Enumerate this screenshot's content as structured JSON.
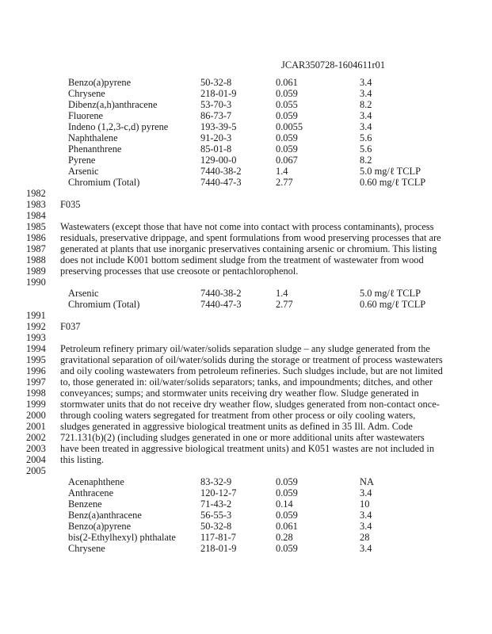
{
  "header": {
    "doc_id": "JCAR350728-1604611r01"
  },
  "table_1": [
    [
      "Benzo(a)pyrene",
      "50-32-8",
      "0.061",
      "3.4"
    ],
    [
      "Chrysene",
      "218-01-9",
      "0.059",
      "3.4"
    ],
    [
      "Dibenz(a,h)anthracene",
      "53-70-3",
      "0.055",
      "8.2"
    ],
    [
      "Fluorene",
      "86-73-7",
      "0.059",
      "3.4"
    ],
    [
      "Indeno (1,2,3-c,d) pyrene",
      "193-39-5",
      "0.0055",
      "3.4"
    ],
    [
      "Naphthalene",
      "91-20-3",
      "0.059",
      "5.6"
    ],
    [
      "Phenanthrene",
      "85-01-8",
      "0.059",
      "5.6"
    ],
    [
      "Pyrene",
      "129-00-0",
      "0.067",
      "8.2"
    ],
    [
      "Arsenic",
      "7440-38-2",
      "1.4",
      "5.0 mg/ℓ TCLP"
    ],
    [
      "Chromium (Total)",
      "7440-47-3",
      "2.77",
      "0.60 mg/ℓ TCLP"
    ]
  ],
  "line_numbers_a": [
    "1982",
    "1983",
    "1984",
    "1985",
    "1986",
    "1987",
    "1988",
    "1989",
    "1990"
  ],
  "f035": {
    "code": "F035",
    "lines": [
      "Wastewaters (except those that have not come into contact with process contaminants), process",
      "residuals, preservative drippage, and spent formulations from wood preserving processes that are",
      "generated at plants that use inorganic preservatives containing arsenic or chromium. This listing",
      "does not include K001 bottom sediment sludge from the treatment of wastewater from wood",
      "preserving processes that use creosote or pentachlorophenol."
    ]
  },
  "table_2": [
    [
      "Arsenic",
      "7440-38-2",
      "1.4",
      "5.0 mg/ℓ TCLP"
    ],
    [
      "Chromium (Total)",
      "7440-47-3",
      "2.77",
      "0.60 mg/ℓ TCLP"
    ]
  ],
  "line_numbers_b": [
    "1991",
    "1992",
    "1993",
    "1994",
    "1995",
    "1996",
    "1997",
    "1998",
    "1999",
    "2000",
    "2001",
    "2002",
    "2003",
    "2004",
    "2005"
  ],
  "f037": {
    "code": "F037",
    "lines": [
      "Petroleum refinery primary oil/water/solids separation sludge – any sludge generated from the",
      "gravitational separation of oil/water/solids during the storage or treatment of process wastewaters",
      "and oily cooling wastewaters from petroleum refineries. Such sludges include, but are not limited",
      "to, those generated in:  oil/water/solids separators; tanks, and impoundments; ditches, and other",
      "conveyances; sumps; and stormwater units receiving dry weather flow. Sludge generated in",
      "stormwater units that do not receive dry weather flow, sludges generated from non-contact once-",
      "through cooling waters segregated for treatment from other process or oily cooling waters,",
      "sludges generated in aggressive biological treatment units as defined in 35 Ill. Adm. Code",
      "721.131(b)(2) (including sludges generated in one or more additional units after wastewaters",
      "have been treated in aggressive biological treatment units) and K051 wastes are not included in",
      "this listing."
    ]
  },
  "table_3": [
    [
      "Acenaphthene",
      "83-32-9",
      "0.059",
      "NA"
    ],
    [
      "Anthracene",
      "120-12-7",
      "0.059",
      "3.4"
    ],
    [
      "Benzene",
      "71-43-2",
      "0.14",
      "10"
    ],
    [
      "Benz(a)anthracene",
      "56-55-3",
      "0.059",
      "3.4"
    ],
    [
      "Benzo(a)pyrene",
      "50-32-8",
      "0.061",
      "3.4"
    ],
    [
      "bis(2-Ethylhexyl) phthalate",
      "117-81-7",
      "0.28",
      "28"
    ],
    [
      "Chrysene",
      "218-01-9",
      "0.059",
      "3.4"
    ]
  ]
}
